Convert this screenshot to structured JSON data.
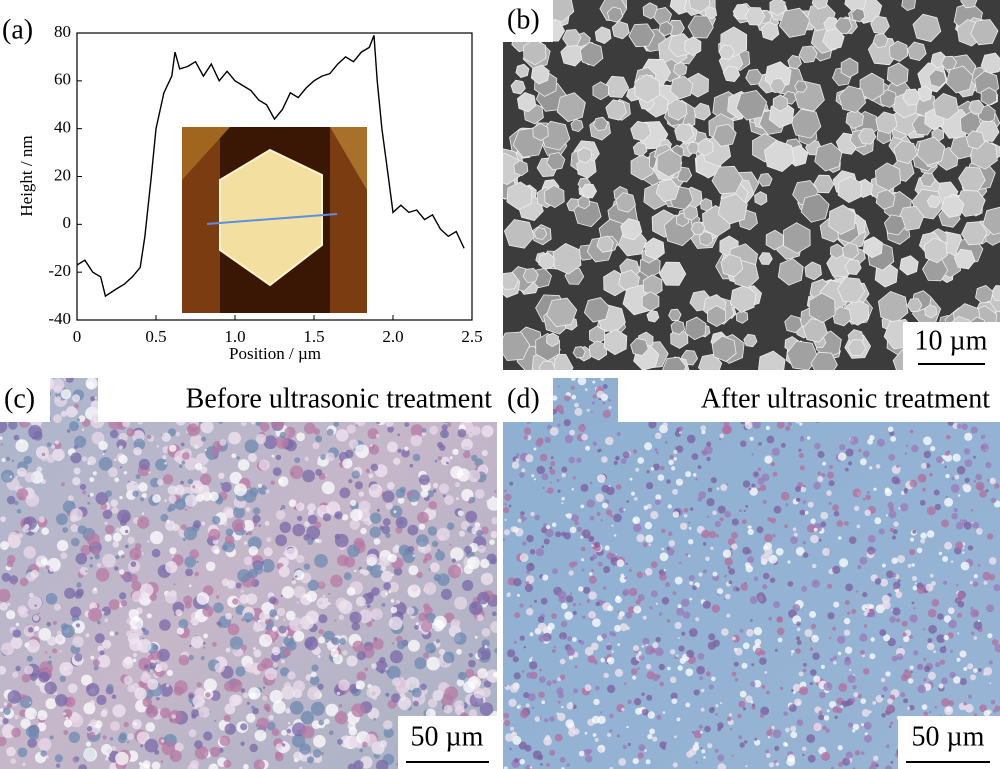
{
  "chart_data": {
    "type": "line",
    "panel_label": "(a)",
    "xlabel": "Position / µm",
    "ylabel": "Height / nm",
    "x": [
      0,
      0.05,
      0.1,
      0.15,
      0.18,
      0.25,
      0.3,
      0.35,
      0.4,
      0.43,
      0.47,
      0.5,
      0.55,
      0.6,
      0.62,
      0.65,
      0.7,
      0.75,
      0.8,
      0.85,
      0.9,
      0.95,
      1.0,
      1.05,
      1.1,
      1.15,
      1.2,
      1.25,
      1.3,
      1.35,
      1.4,
      1.45,
      1.5,
      1.55,
      1.6,
      1.65,
      1.7,
      1.75,
      1.8,
      1.85,
      1.88,
      1.9,
      1.93,
      1.97,
      2.0,
      2.05,
      2.1,
      2.15,
      2.2,
      2.25,
      2.3,
      2.35,
      2.4,
      2.45
    ],
    "values": [
      -17,
      -15,
      -20,
      -22,
      -30,
      -27,
      -25,
      -22,
      -18,
      -5,
      20,
      40,
      55,
      62,
      72,
      65,
      66,
      68,
      62,
      67,
      60,
      64,
      60,
      58,
      56,
      52,
      50,
      44,
      48,
      55,
      53,
      57,
      60,
      62,
      63,
      67,
      70,
      68,
      72,
      74,
      79,
      60,
      40,
      20,
      5,
      8,
      5,
      6,
      2,
      4,
      -2,
      -5,
      -3,
      -10
    ],
    "color": "#000000",
    "xlim": [
      0,
      2.5
    ],
    "ylim": [
      -40,
      80
    ],
    "xticks": [
      0,
      0.5,
      {
        "value": 1,
        "label": "1.0"
      },
      1.5,
      {
        "value": 2,
        "label": "2.0"
      },
      2.5
    ],
    "yticks": [
      -40,
      -20,
      0,
      20,
      40,
      60,
      80
    ]
  },
  "panels": [
    {
      "label": "(b)",
      "scale_bar": "10 µm"
    },
    {
      "label": "(c)",
      "caption": "Before ultrasonic treatment",
      "scale_bar": "50 µm"
    },
    {
      "label": "(d)",
      "caption": "After ultrasonic treatment",
      "scale_bar": "50 µm"
    }
  ]
}
